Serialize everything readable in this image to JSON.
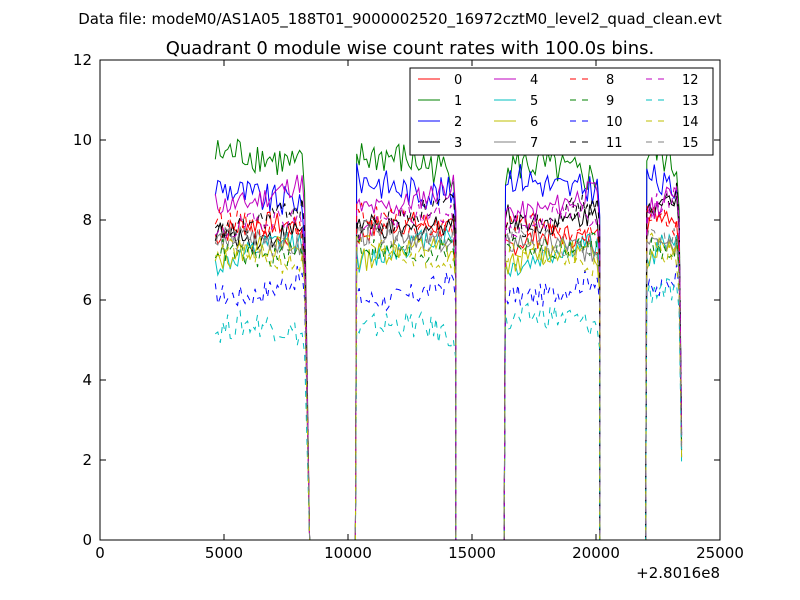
{
  "chart_data": {
    "type": "line",
    "suptitle": "Data file: modeM0/AS1A05_188T01_9000002520_16972cztM0_level2_quad_clean.evt",
    "title": "Quadrant 0 module wise count rates with 100.0s bins.",
    "xlabel": "",
    "ylabel": "",
    "x_offset_label": "+2.8016e8",
    "xlim": [
      0,
      25000
    ],
    "ylim": [
      0,
      12
    ],
    "xticks": [
      0,
      5000,
      10000,
      15000,
      20000,
      25000
    ],
    "yticks": [
      0,
      2,
      4,
      6,
      8,
      10,
      12
    ],
    "grid": false,
    "legend_position": "top-right",
    "segments": [
      [
        4650,
        8150
      ],
      [
        10350,
        14250
      ],
      [
        16350,
        20050
      ],
      [
        22050,
        23250
      ]
    ],
    "gap_zero_ranges": [
      [
        8450,
        10300
      ],
      [
        14350,
        16300
      ],
      [
        20150,
        22000
      ]
    ],
    "series": [
      {
        "name": "0",
        "color": "#ff0000",
        "dash": "solid",
        "level": [
          7.6,
          7.6,
          7.3,
          7.9
        ],
        "noise": 0.3
      },
      {
        "name": "1",
        "color": "#008000",
        "dash": "solid",
        "level": [
          9.4,
          9.3,
          9.1,
          9.4
        ],
        "noise": 0.45
      },
      {
        "name": "2",
        "color": "#0000ff",
        "dash": "solid",
        "level": [
          8.6,
          8.8,
          8.9,
          8.9
        ],
        "noise": 0.4
      },
      {
        "name": "3",
        "color": "#000000",
        "dash": "solid",
        "level": [
          7.7,
          7.9,
          8.1,
          8.5
        ],
        "noise": 0.3
      },
      {
        "name": "4",
        "color": "#bf00bf",
        "dash": "solid",
        "level": [
          8.6,
          8.5,
          8.4,
          8.5
        ],
        "noise": 0.3
      },
      {
        "name": "5",
        "color": "#00bfbf",
        "dash": "solid",
        "level": [
          7.1,
          7.2,
          7.0,
          7.2
        ],
        "noise": 0.3
      },
      {
        "name": "6",
        "color": "#bfbf00",
        "dash": "solid",
        "level": [
          7.0,
          7.0,
          6.9,
          7.1
        ],
        "noise": 0.3
      },
      {
        "name": "7",
        "color": "#808080",
        "dash": "solid",
        "level": [
          7.3,
          7.4,
          7.2,
          7.4
        ],
        "noise": 0.3
      },
      {
        "name": "8",
        "color": "#ff0000",
        "dash": "dashed",
        "level": [
          7.8,
          7.9,
          7.7,
          8.0
        ],
        "noise": 0.3
      },
      {
        "name": "9",
        "color": "#008000",
        "dash": "dashed",
        "level": [
          7.2,
          7.3,
          7.4,
          7.3
        ],
        "noise": 0.3
      },
      {
        "name": "10",
        "color": "#0000ff",
        "dash": "dashed",
        "level": [
          6.3,
          6.2,
          6.3,
          6.4
        ],
        "noise": 0.3
      },
      {
        "name": "11",
        "color": "#000000",
        "dash": "dashed",
        "level": [
          7.9,
          8.0,
          8.0,
          8.3
        ],
        "noise": 0.3
      },
      {
        "name": "12",
        "color": "#bf00bf",
        "dash": "dashed",
        "level": [
          7.7,
          7.8,
          7.8,
          8.2
        ],
        "noise": 0.3
      },
      {
        "name": "13",
        "color": "#00bfbf",
        "dash": "dashed",
        "level": [
          5.1,
          5.1,
          5.3,
          6.0
        ],
        "noise": 0.35
      },
      {
        "name": "14",
        "color": "#bfbf00",
        "dash": "dashed",
        "level": [
          7.0,
          7.1,
          7.0,
          7.2
        ],
        "noise": 0.3
      },
      {
        "name": "15",
        "color": "#808080",
        "dash": "dashed",
        "level": [
          7.5,
          7.6,
          7.4,
          7.6
        ],
        "noise": 0.3
      }
    ]
  }
}
